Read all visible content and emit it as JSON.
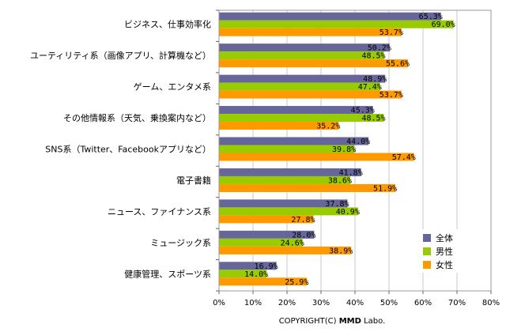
{
  "chart_data": {
    "type": "bar",
    "orientation": "horizontal",
    "categories": [
      "ビジネス、仕事効率化",
      "ユーティリティ系（画像アプリ、計算機など）",
      "ゲーム、エンタメ系",
      "その他情報系（天気、乗換案内など）",
      "SNS系（Twitter、Facebookアプリなど）",
      "電子書籍",
      "ニュース、ファイナンス系",
      "ミュージック系",
      "健康管理、スポーツ系"
    ],
    "series": [
      {
        "name": "全体",
        "color": "#66669a",
        "values": [
          65.3,
          50.2,
          48.9,
          45.3,
          44.0,
          41.8,
          37.8,
          28.0,
          16.9
        ],
        "labels": [
          "65.3%",
          "50.2%",
          "48.9%",
          "45.3%",
          "44.0%",
          "41.8%",
          "37.8%",
          "28.0%",
          "16.9%"
        ]
      },
      {
        "name": "男性",
        "color": "#99cc00",
        "values": [
          69.0,
          48.5,
          47.4,
          48.5,
          39.8,
          38.6,
          40.9,
          24.6,
          14.0
        ],
        "labels": [
          "69.0%",
          "48.5%",
          "47.4%",
          "48.5%",
          "39.8%",
          "38.6%",
          "40.9%",
          "24.6%",
          "14.0%"
        ]
      },
      {
        "name": "女性",
        "color": "#ff9900",
        "values": [
          53.7,
          55.6,
          53.7,
          35.2,
          57.4,
          51.9,
          27.8,
          38.9,
          25.9
        ],
        "labels": [
          "53.7%",
          "55.6%",
          "53.7%",
          "35.2%",
          "57.4%",
          "51.9%",
          "27.8%",
          "38.9%",
          "25.9%"
        ]
      }
    ],
    "xlim": [
      0,
      80
    ],
    "xticks": [
      0,
      10,
      20,
      30,
      40,
      50,
      60,
      70,
      80
    ],
    "xtick_labels": [
      "0%",
      "10%",
      "20%",
      "30%",
      "40%",
      "50%",
      "60%",
      "70%",
      "80%"
    ],
    "grid": true,
    "legend_position": "bottom-right"
  },
  "footer": {
    "copyright_prefix": "COPYRIGHT(C) ",
    "copyright_brand": "MMD",
    "copyright_suffix": " Labo."
  }
}
